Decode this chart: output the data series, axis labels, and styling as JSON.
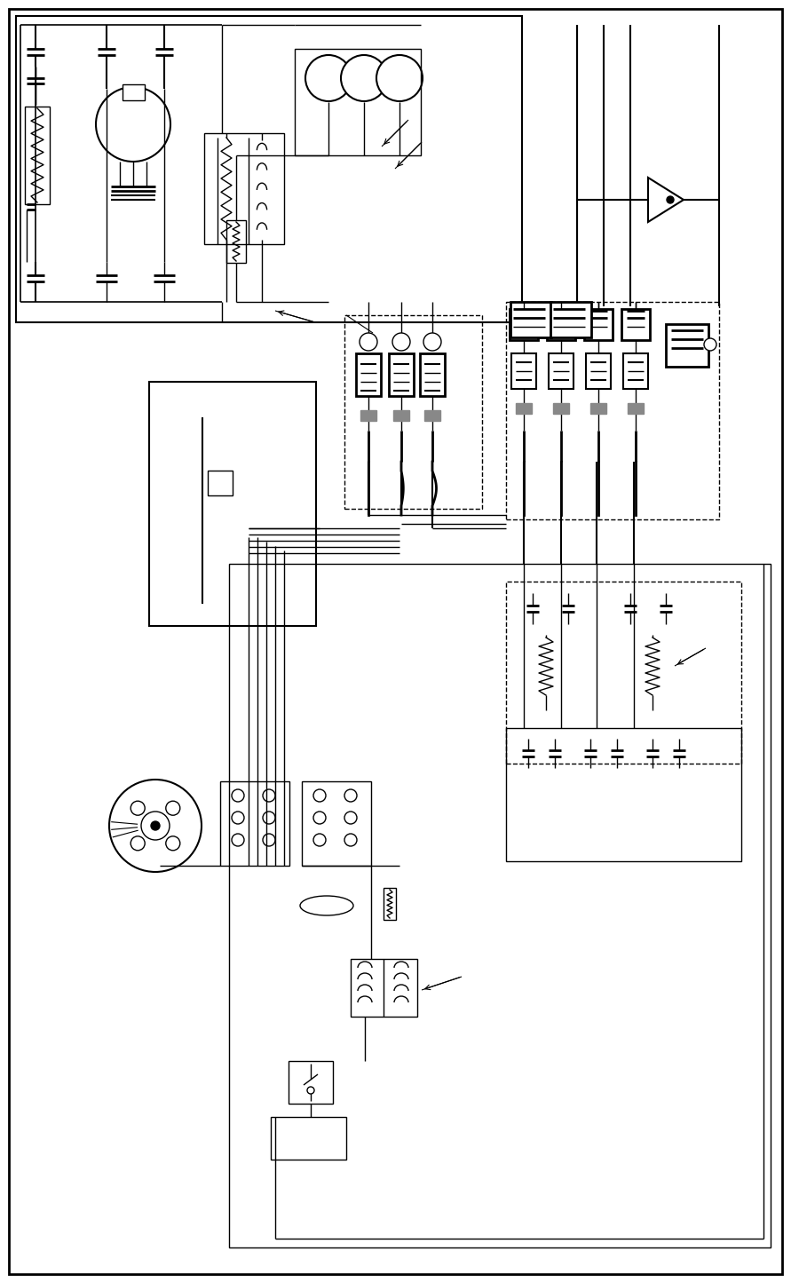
{
  "bg_color": "#ffffff",
  "line_color": "#000000",
  "fig_width": 8.91,
  "fig_height": 14.45
}
